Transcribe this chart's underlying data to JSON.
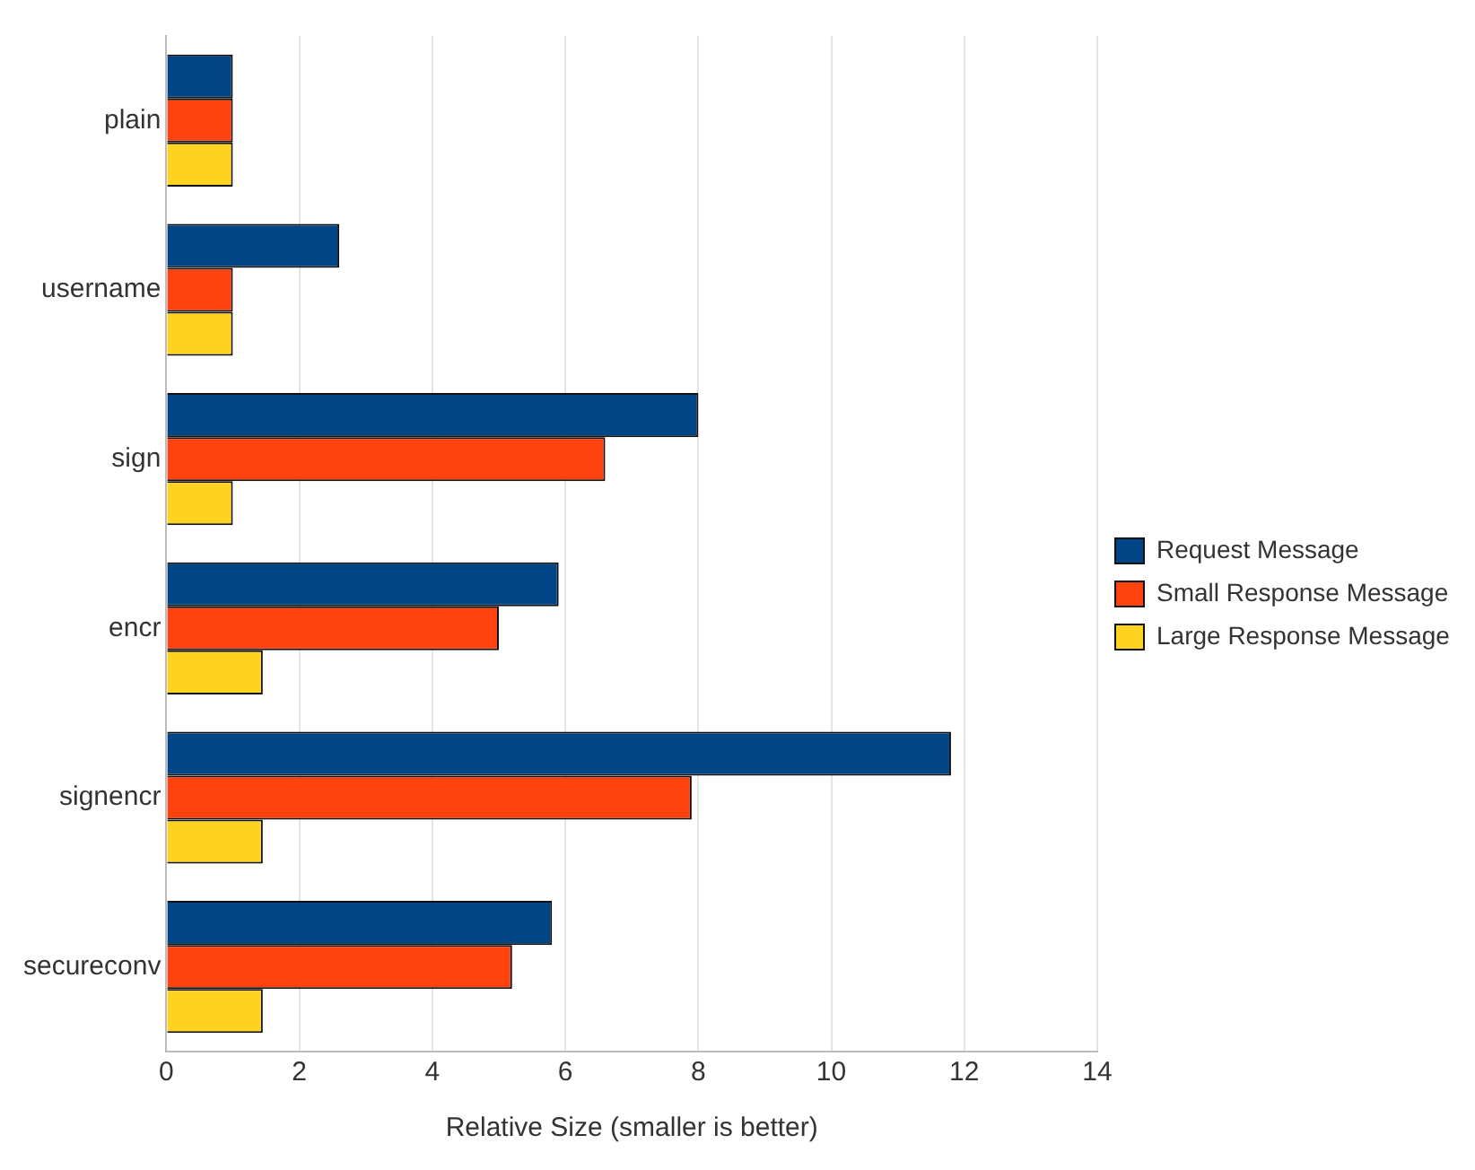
{
  "chart_data": {
    "type": "bar",
    "orientation": "horizontal",
    "xlabel": "Relative Size (smaller is better)",
    "categories": [
      "plain",
      "username",
      "sign",
      "encr",
      "signencr",
      "secureconv"
    ],
    "series": [
      {
        "name": "Request Message",
        "color": "#004586",
        "values": [
          1,
          2.6,
          8.0,
          5.9,
          11.8,
          5.8
        ]
      },
      {
        "name": "Small Response Message",
        "color": "#ff420e",
        "values": [
          1,
          1,
          6.6,
          5.0,
          7.9,
          5.2
        ]
      },
      {
        "name": "Large Response Message",
        "color": "#ffd320",
        "values": [
          1,
          1,
          1,
          1.45,
          1.45,
          1.45
        ]
      }
    ],
    "xlim": [
      0,
      14
    ],
    "xticks": [
      0,
      2,
      4,
      6,
      8,
      10,
      12,
      14
    ],
    "grid": "x",
    "legend": "right"
  }
}
